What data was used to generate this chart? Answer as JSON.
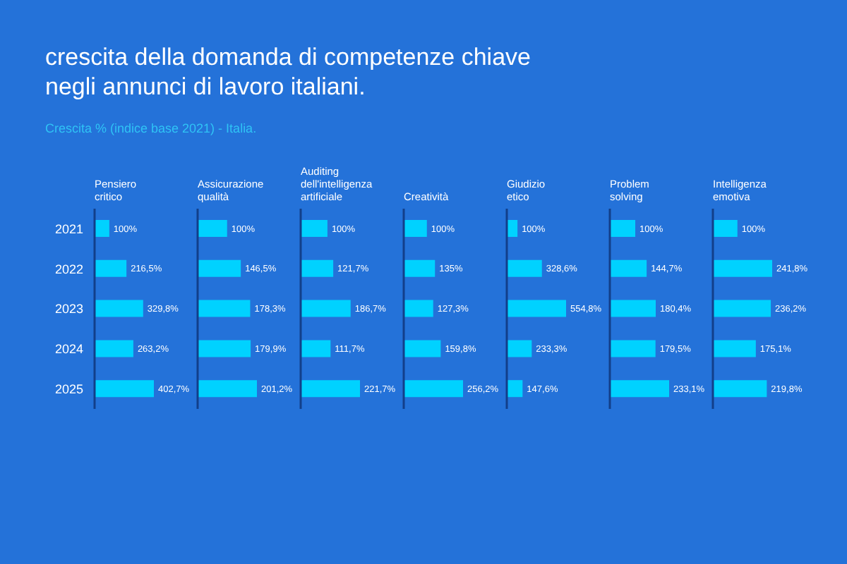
{
  "chart_data": [
    {
      "type": "other",
      "title": "crescita della domanda di competenze chiave\nnegli annunci di lavoro italiani.",
      "subtitle": "Crescita % (indice base 2021) - Italia."
    },
    {
      "type": "bar",
      "orientation": "horizontal",
      "title": "Pensiero\ncritico",
      "categories": [
        "2021",
        "2022",
        "2023",
        "2024",
        "2025"
      ],
      "values": [
        100,
        216.5,
        329.8,
        263.2,
        402.7
      ],
      "value_labels": [
        "100%",
        "216,5%",
        "329,8%",
        "263,2%",
        "402,7%"
      ],
      "color": "#00d2ff",
      "tick_labels": "y"
    },
    {
      "type": "bar",
      "orientation": "horizontal",
      "title": "Assicurazione\nqualità",
      "categories": [
        null,
        null,
        null,
        null,
        null
      ],
      "values": [
        100,
        146.5,
        178.3,
        179.9,
        201.2
      ],
      "value_labels": [
        "100%",
        "146,5%",
        "178,3%",
        "179,9%",
        "201,2%"
      ],
      "color": "#00d2ff",
      "tick_labels": false
    },
    {
      "type": "bar",
      "orientation": "horizontal",
      "title": "Auditing\ndell'intelligenza\nartificiale",
      "categories": [
        null,
        null,
        null,
        null,
        null
      ],
      "values": [
        100,
        121.7,
        186.7,
        111.7,
        221.7
      ],
      "value_labels": [
        "100%",
        "121,7%",
        "186,7%",
        "111,7%",
        "221,7%"
      ],
      "color": "#00d2ff",
      "tick_labels": false
    },
    {
      "type": "bar",
      "orientation": "horizontal",
      "title": "Creatività",
      "categories": [
        null,
        null,
        null,
        null,
        null
      ],
      "values": [
        100,
        135,
        127.3,
        159.8,
        256.2
      ],
      "value_labels": [
        "100%",
        "135%",
        "127,3%",
        "159,8%",
        "256,2%"
      ],
      "color": "#00d2ff",
      "tick_labels": false
    },
    {
      "type": "bar",
      "orientation": "horizontal",
      "title": "Giudizio\netico",
      "categories": [
        null,
        null,
        null,
        null,
        null
      ],
      "values": [
        100,
        328.6,
        554.8,
        233.3,
        147.6
      ],
      "value_labels": [
        "100%",
        "328,6%",
        "554,8%",
        "233,3%",
        "147,6%"
      ],
      "color": "#00d2ff",
      "tick_labels": false
    },
    {
      "type": "bar",
      "orientation": "horizontal",
      "title": "Problem\nsolving",
      "categories": [
        null,
        null,
        null,
        null,
        null
      ],
      "values": [
        100,
        144.7,
        180.4,
        179.5,
        233.1
      ],
      "value_labels": [
        "100%",
        "144,7%",
        "180,4%",
        "179,5%",
        "233,1%"
      ],
      "color": "#00d2ff",
      "tick_labels": false
    },
    {
      "type": "bar",
      "orientation": "horizontal",
      "title": "Intelligenza\nemotiva",
      "categories": [
        null,
        null,
        null,
        null,
        null
      ],
      "values": [
        100,
        241.8,
        236.2,
        175.1,
        219.8
      ],
      "value_labels": [
        "100%",
        "241,8%",
        "236,2%",
        "175,1%",
        "219,8%"
      ],
      "color": "#00d2ff",
      "tick_labels": false
    }
  ]
}
